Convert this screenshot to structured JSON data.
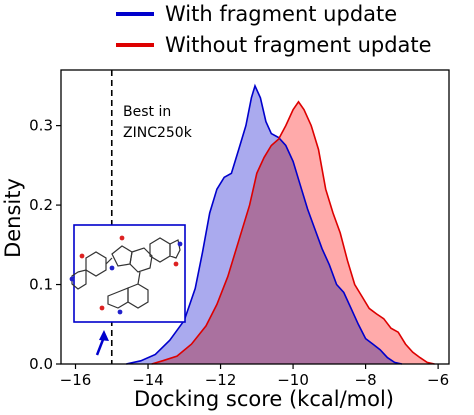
{
  "chart_data": {
    "type": "area",
    "title": "",
    "xlabel": "Docking score (kcal/mol)",
    "ylabel": "Density",
    "xlim": [
      -16.4,
      -5.7
    ],
    "ylim": [
      0,
      0.37
    ],
    "xticks": [
      -16,
      -14,
      -12,
      -10,
      -8,
      -6
    ],
    "xtick_labels": [
      "−16",
      "−14",
      "−12",
      "−10",
      "−8",
      "−6"
    ],
    "yticks": [
      0.0,
      0.1,
      0.2,
      0.3
    ],
    "ytick_labels": [
      "0.0",
      "0.1",
      "0.2",
      "0.3"
    ],
    "grid": false,
    "legend_position": "top-center, outside plot",
    "series": [
      {
        "name": "With fragment update",
        "color": "#0000cc",
        "fill": "#aaaaee",
        "points": [
          [
            -14.6,
            0.0
          ],
          [
            -14.2,
            0.004
          ],
          [
            -13.8,
            0.012
          ],
          [
            -13.4,
            0.03
          ],
          [
            -13.0,
            0.055
          ],
          [
            -12.7,
            0.095
          ],
          [
            -12.5,
            0.14
          ],
          [
            -12.3,
            0.19
          ],
          [
            -12.1,
            0.22
          ],
          [
            -11.9,
            0.235
          ],
          [
            -11.7,
            0.24
          ],
          [
            -11.5,
            0.27
          ],
          [
            -11.3,
            0.3
          ],
          [
            -11.15,
            0.335
          ],
          [
            -11.05,
            0.35
          ],
          [
            -10.9,
            0.335
          ],
          [
            -10.75,
            0.305
          ],
          [
            -10.6,
            0.29
          ],
          [
            -10.4,
            0.285
          ],
          [
            -10.2,
            0.275
          ],
          [
            -10.0,
            0.255
          ],
          [
            -9.8,
            0.225
          ],
          [
            -9.6,
            0.195
          ],
          [
            -9.4,
            0.17
          ],
          [
            -9.2,
            0.145
          ],
          [
            -9.0,
            0.125
          ],
          [
            -8.8,
            0.1
          ],
          [
            -8.6,
            0.09
          ],
          [
            -8.4,
            0.07
          ],
          [
            -8.2,
            0.05
          ],
          [
            -8.0,
            0.032
          ],
          [
            -7.8,
            0.025
          ],
          [
            -7.6,
            0.018
          ],
          [
            -7.4,
            0.008
          ],
          [
            -7.2,
            0.002
          ],
          [
            -7.0,
            0.0
          ]
        ]
      },
      {
        "name": "Without fragment update",
        "color": "#dd0000",
        "fill": "#ffaaaa",
        "points": [
          [
            -13.9,
            0.0
          ],
          [
            -13.6,
            0.004
          ],
          [
            -13.2,
            0.01
          ],
          [
            -12.8,
            0.025
          ],
          [
            -12.4,
            0.048
          ],
          [
            -12.1,
            0.075
          ],
          [
            -11.8,
            0.11
          ],
          [
            -11.5,
            0.155
          ],
          [
            -11.2,
            0.2
          ],
          [
            -11.0,
            0.24
          ],
          [
            -10.8,
            0.26
          ],
          [
            -10.6,
            0.275
          ],
          [
            -10.4,
            0.283
          ],
          [
            -10.2,
            0.3
          ],
          [
            -10.0,
            0.32
          ],
          [
            -9.85,
            0.33
          ],
          [
            -9.7,
            0.32
          ],
          [
            -9.5,
            0.3
          ],
          [
            -9.3,
            0.27
          ],
          [
            -9.1,
            0.22
          ],
          [
            -8.9,
            0.19
          ],
          [
            -8.7,
            0.165
          ],
          [
            -8.5,
            0.13
          ],
          [
            -8.3,
            0.1
          ],
          [
            -8.1,
            0.085
          ],
          [
            -7.9,
            0.07
          ],
          [
            -7.7,
            0.063
          ],
          [
            -7.5,
            0.057
          ],
          [
            -7.3,
            0.045
          ],
          [
            -7.1,
            0.04
          ],
          [
            -6.9,
            0.025
          ],
          [
            -6.7,
            0.015
          ],
          [
            -6.5,
            0.008
          ],
          [
            -6.3,
            0.002
          ],
          [
            -6.1,
            0.0
          ]
        ]
      }
    ],
    "reference_line": {
      "x": -15.0,
      "style": "dashed",
      "color": "#000000"
    },
    "annotations": {
      "best_line1": "Best in",
      "best_line2": "ZINC250k"
    }
  },
  "legend": {
    "with_label": "With fragment update",
    "without_label": "Without fragment update",
    "with_color": "#0000cc",
    "without_color": "#dd0000"
  },
  "inset": {
    "border_color": "#0000cc",
    "arrow_color": "#0000cc",
    "molecule_line_color": "#333333",
    "heteroatom_colors": {
      "oxygen": "#dd2222",
      "nitrogen": "#2222cc"
    }
  }
}
